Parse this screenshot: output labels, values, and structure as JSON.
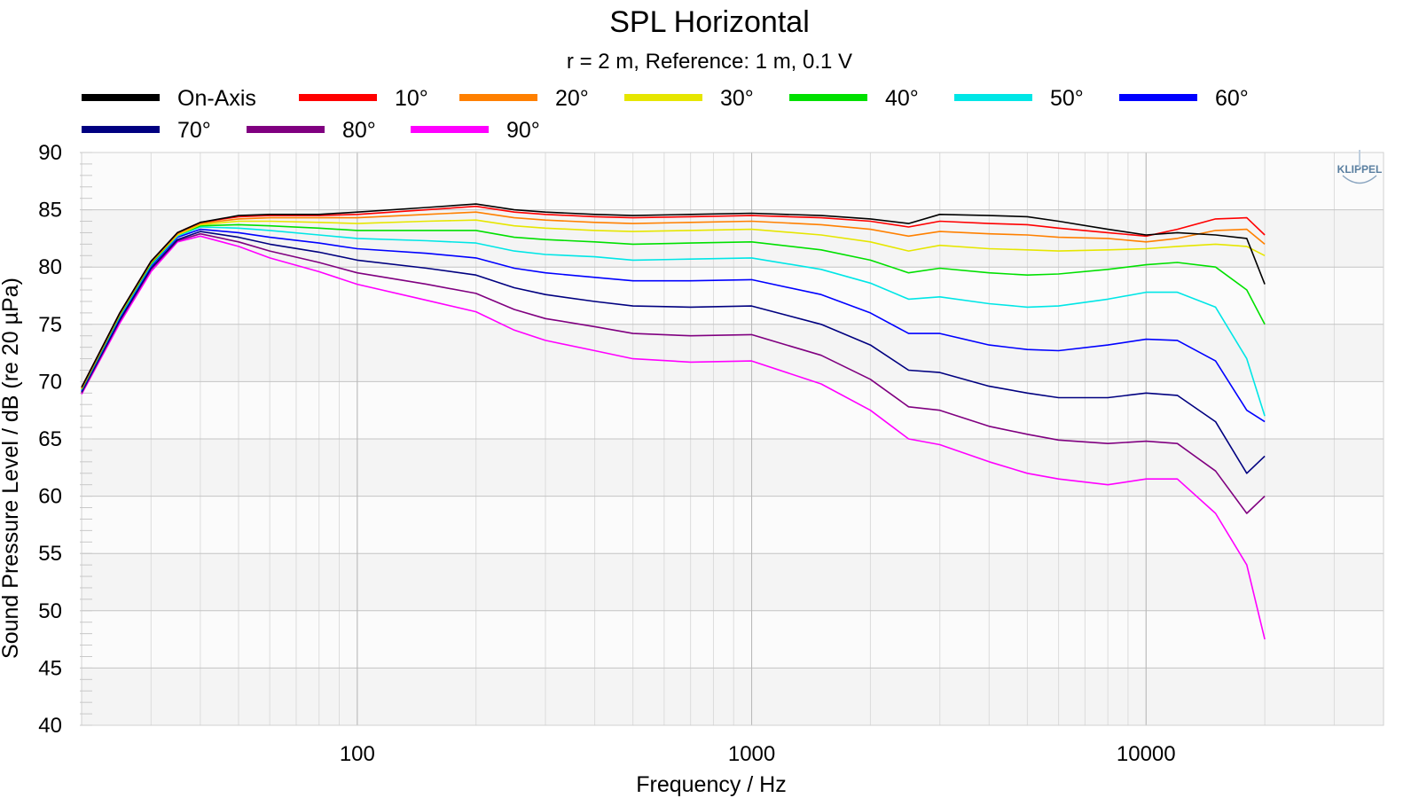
{
  "chart_data": {
    "type": "line",
    "title": "SPL Horizontal",
    "subtitle": "r = 2 m,  Reference: 1 m, 0.1 V",
    "xlabel": "Frequency / Hz",
    "ylabel": "Sound Pressure Level / dB (re 20 µPa)",
    "x_scale": "log",
    "xlim": [
      20,
      40000
    ],
    "ylim": [
      40,
      90
    ],
    "x_ticks": [
      100,
      1000,
      10000
    ],
    "x_tick_labels": [
      "100",
      "1000",
      "10000"
    ],
    "y_ticks": [
      40,
      45,
      50,
      55,
      60,
      65,
      70,
      75,
      80,
      85,
      90
    ],
    "y_tick_labels": [
      "40",
      "45",
      "50",
      "55",
      "60",
      "65",
      "70",
      "75",
      "80",
      "85",
      "90"
    ],
    "grid": true,
    "legend_position": "top",
    "watermark": "KLIPPEL",
    "x": [
      20,
      25,
      30,
      35,
      40,
      50,
      60,
      80,
      100,
      150,
      200,
      250,
      300,
      400,
      500,
      700,
      1000,
      1500,
      2000,
      2500,
      3000,
      4000,
      5000,
      6000,
      8000,
      10000,
      12000,
      15000,
      18000,
      20000
    ],
    "series": [
      {
        "name": "On-Axis",
        "color": "#000000",
        "values": [
          69.5,
          76,
          80.5,
          83,
          83.9,
          84.5,
          84.6,
          84.6,
          84.8,
          85.2,
          85.5,
          85.0,
          84.8,
          84.6,
          84.5,
          84.6,
          84.7,
          84.5,
          84.2,
          83.8,
          84.6,
          84.5,
          84.4,
          84.0,
          83.3,
          82.8,
          83.0,
          82.8,
          82.5,
          78.5
        ]
      },
      {
        "name": "10°",
        "color": "#ff0000",
        "values": [
          69.5,
          76,
          80.5,
          83,
          83.9,
          84.4,
          84.5,
          84.5,
          84.6,
          85.0,
          85.3,
          84.8,
          84.6,
          84.4,
          84.3,
          84.4,
          84.5,
          84.3,
          84.0,
          83.5,
          84.0,
          83.8,
          83.7,
          83.4,
          83.0,
          82.7,
          83.3,
          84.2,
          84.3,
          82.8
        ]
      },
      {
        "name": "20°",
        "color": "#ff8000",
        "values": [
          69.4,
          75.9,
          80.4,
          82.9,
          83.8,
          84.2,
          84.3,
          84.3,
          84.3,
          84.6,
          84.8,
          84.3,
          84.1,
          83.9,
          83.8,
          83.9,
          84.0,
          83.7,
          83.3,
          82.7,
          83.1,
          82.9,
          82.8,
          82.6,
          82.5,
          82.2,
          82.5,
          83.2,
          83.3,
          82.0
        ]
      },
      {
        "name": "30°",
        "color": "#e6e600",
        "values": [
          69.4,
          75.9,
          80.4,
          82.8,
          83.7,
          84.0,
          84.0,
          83.9,
          83.8,
          84.0,
          84.1,
          83.6,
          83.4,
          83.2,
          83.1,
          83.2,
          83.3,
          82.8,
          82.2,
          81.4,
          81.9,
          81.6,
          81.5,
          81.4,
          81.5,
          81.6,
          81.8,
          82.0,
          81.8,
          81.0
        ]
      },
      {
        "name": "40°",
        "color": "#00e000",
        "values": [
          69.3,
          75.8,
          80.3,
          82.8,
          83.6,
          83.7,
          83.6,
          83.4,
          83.2,
          83.2,
          83.2,
          82.6,
          82.4,
          82.2,
          82.0,
          82.1,
          82.2,
          81.5,
          80.6,
          79.5,
          79.9,
          79.5,
          79.3,
          79.4,
          79.8,
          80.2,
          80.4,
          80.0,
          78.0,
          75.0
        ]
      },
      {
        "name": "50°",
        "color": "#00e6e6",
        "values": [
          69.3,
          75.7,
          80.2,
          82.7,
          83.5,
          83.4,
          83.2,
          82.8,
          82.5,
          82.3,
          82.1,
          81.4,
          81.1,
          80.9,
          80.6,
          80.7,
          80.8,
          79.8,
          78.6,
          77.2,
          77.4,
          76.8,
          76.5,
          76.6,
          77.2,
          77.8,
          77.8,
          76.5,
          72.0,
          67.0
        ]
      },
      {
        "name": "60°",
        "color": "#0000ff",
        "values": [
          69.2,
          75.6,
          80.1,
          82.6,
          83.3,
          83.0,
          82.6,
          82.1,
          81.6,
          81.2,
          80.8,
          79.9,
          79.5,
          79.1,
          78.8,
          78.8,
          78.9,
          77.6,
          76.0,
          74.2,
          74.2,
          73.2,
          72.8,
          72.7,
          73.2,
          73.7,
          73.6,
          71.8,
          67.5,
          66.5
        ]
      },
      {
        "name": "70°",
        "color": "#000080",
        "values": [
          69.1,
          75.4,
          79.9,
          82.4,
          83.1,
          82.6,
          82.0,
          81.3,
          80.6,
          79.9,
          79.3,
          78.2,
          77.6,
          77.0,
          76.6,
          76.5,
          76.6,
          75.0,
          73.2,
          71.0,
          70.8,
          69.6,
          69.0,
          68.6,
          68.6,
          69.0,
          68.8,
          66.5,
          62.0,
          63.5
        ]
      },
      {
        "name": "80°",
        "color": "#800080",
        "values": [
          69.0,
          75.3,
          79.8,
          82.3,
          82.9,
          82.2,
          81.4,
          80.4,
          79.5,
          78.5,
          77.7,
          76.3,
          75.5,
          74.8,
          74.2,
          74.0,
          74.1,
          72.3,
          70.2,
          67.8,
          67.5,
          66.1,
          65.4,
          64.9,
          64.6,
          64.8,
          64.6,
          62.2,
          58.5,
          60.0
        ]
      },
      {
        "name": "90°",
        "color": "#ff00ff",
        "values": [
          68.9,
          75.1,
          79.6,
          82.2,
          82.7,
          81.8,
          80.8,
          79.6,
          78.5,
          77.1,
          76.1,
          74.5,
          73.6,
          72.7,
          72.0,
          71.7,
          71.8,
          69.8,
          67.5,
          65.0,
          64.5,
          63.0,
          62.0,
          61.5,
          61.0,
          61.5,
          61.5,
          58.5,
          54.0,
          47.5
        ]
      }
    ]
  }
}
